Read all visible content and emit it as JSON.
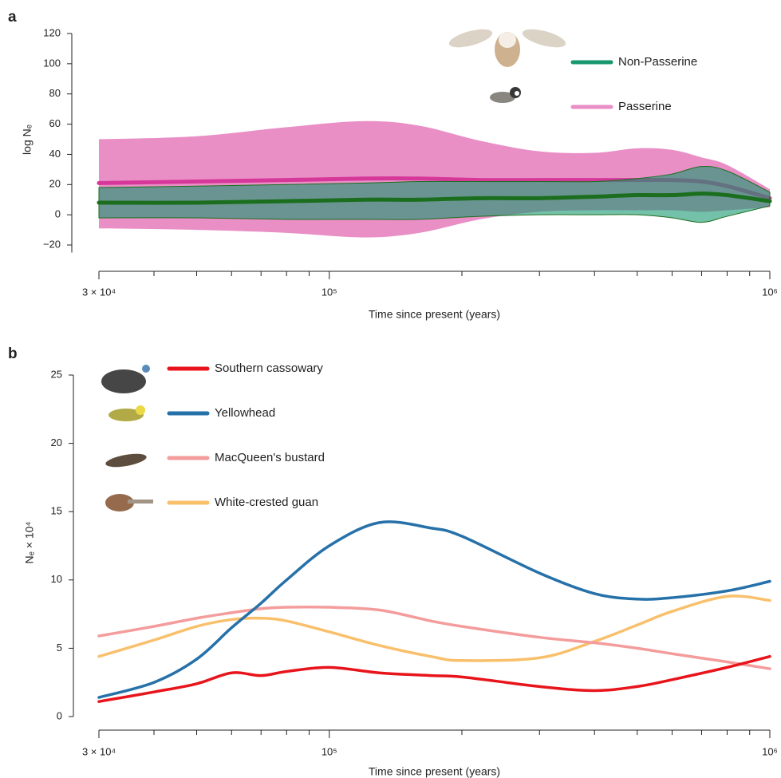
{
  "chart_data": [
    {
      "type": "line",
      "panel_label": "a",
      "y_label": "log Nₑ",
      "x_label": "Time since present (years)",
      "xscale": "log",
      "xlim": [
        30000,
        1000000
      ],
      "xticks": [
        {
          "value": 30000,
          "label": "3 × 10⁴"
        },
        {
          "value": 100000,
          "label": "10⁵"
        },
        {
          "value": 1000000,
          "label": "10⁶"
        }
      ],
      "xminor": [
        40000,
        50000,
        60000,
        70000,
        80000,
        90000,
        200000,
        300000,
        400000,
        500000,
        600000,
        700000,
        800000,
        900000
      ],
      "ylim": [
        -25,
        120
      ],
      "yticks": [
        {
          "value": -20,
          "label": "−20"
        },
        0,
        20,
        40,
        60,
        80,
        100,
        120
      ],
      "legend": "top-right",
      "x": [
        30000,
        50000,
        80000,
        120000,
        160000,
        220000,
        300000,
        400000,
        500000,
        600000,
        700000,
        800000,
        1000000
      ],
      "series": [
        {
          "name": "Non-Passerine",
          "color": "#16976f",
          "line_color": "#1b6e1d",
          "band_opacity": 0.6,
          "values": [
            8,
            8,
            9,
            10,
            10,
            11,
            11,
            12,
            13,
            13,
            14,
            13,
            9
          ],
          "upper": [
            18,
            19,
            20,
            21,
            22,
            22,
            22,
            22,
            24,
            27,
            32,
            29,
            15
          ],
          "lower": [
            -2,
            -2,
            -3,
            -3,
            -3,
            -1,
            0,
            0,
            0,
            -2,
            -5,
            -1,
            6
          ]
        },
        {
          "name": "Passerine",
          "color": "#e98fc6",
          "line_color": "#d6389a",
          "band_opacity": 1,
          "values": [
            21,
            22,
            23,
            24,
            24,
            23,
            23,
            23,
            23,
            23,
            22,
            19,
            11
          ],
          "upper": [
            50,
            52,
            58,
            62,
            59,
            49,
            42,
            41,
            44,
            43,
            38,
            33,
            17
          ],
          "lower": [
            -9,
            -10,
            -12,
            -15,
            -12,
            -3,
            2,
            3,
            3,
            3,
            2,
            3,
            5
          ]
        }
      ]
    },
    {
      "type": "line",
      "panel_label": "b",
      "y_label": "Nₑ × 10⁴",
      "x_label": "Time since present (years)",
      "xscale": "log",
      "xlim": [
        30000,
        1000000
      ],
      "xticks": [
        {
          "value": 30000,
          "label": "3 × 10⁴"
        },
        {
          "value": 100000,
          "label": "10⁵"
        },
        {
          "value": 1000000,
          "label": "10⁶"
        }
      ],
      "xminor": [
        40000,
        50000,
        60000,
        70000,
        80000,
        90000,
        200000,
        300000,
        400000,
        500000,
        600000,
        700000,
        800000,
        900000
      ],
      "ylim": [
        0,
        25
      ],
      "yticks": [
        0,
        5,
        10,
        15,
        20,
        25
      ],
      "legend": "top-left",
      "x": [
        30000,
        40000,
        50000,
        60000,
        70000,
        80000,
        100000,
        130000,
        170000,
        200000,
        300000,
        400000,
        500000,
        600000,
        800000,
        1000000
      ],
      "series": [
        {
          "name": "Southern cassowary",
          "color": "#e8141b",
          "values": [
            1.1,
            1.8,
            2.4,
            3.2,
            3.0,
            3.3,
            3.6,
            3.2,
            3.0,
            2.9,
            2.2,
            1.9,
            2.2,
            2.7,
            3.6,
            4.4
          ]
        },
        {
          "name": "Yellowhead",
          "color": "#2671a9",
          "values": [
            1.4,
            2.5,
            4.2,
            6.5,
            8.3,
            10.0,
            12.5,
            14.2,
            13.8,
            13.2,
            10.5,
            9.0,
            8.6,
            8.7,
            9.2,
            9.9
          ]
        },
        {
          "name": "MacQueen's bustard",
          "color": "#f49c9c",
          "values": [
            5.9,
            6.6,
            7.2,
            7.6,
            7.9,
            8.0,
            8.0,
            7.8,
            7.0,
            6.6,
            5.8,
            5.4,
            5.0,
            4.6,
            4.0,
            3.5
          ]
        },
        {
          "name": "White-crested guan",
          "color": "#f9c06c",
          "values": [
            4.4,
            5.6,
            6.6,
            7.1,
            7.2,
            7.0,
            6.2,
            5.2,
            4.4,
            4.1,
            4.3,
            5.5,
            6.7,
            7.7,
            8.8,
            8.5
          ]
        }
      ]
    }
  ]
}
